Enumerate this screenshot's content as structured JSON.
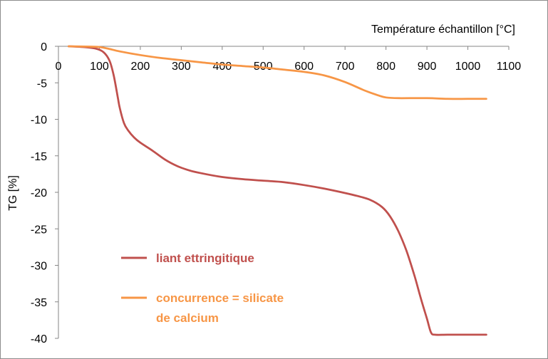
{
  "chart_data": {
    "type": "line",
    "title": "",
    "xlabel": "Température échantillon [°C]",
    "ylabel": "TG [%]",
    "xlim": [
      0,
      1100
    ],
    "ylim": [
      -40,
      0
    ],
    "xticks": [
      0,
      100,
      200,
      300,
      400,
      500,
      600,
      700,
      800,
      900,
      1000,
      1100
    ],
    "yticks": [
      0,
      -5,
      -10,
      -15,
      -20,
      -25,
      -30,
      -35,
      -40
    ],
    "x_axis_position": "top",
    "grid": false,
    "legend_position": "lower-left",
    "series": [
      {
        "name": "liant ettringitique",
        "color": "#c0504d",
        "x": [
          25,
          60,
          90,
          110,
          125,
          135,
          145,
          150,
          160,
          170,
          185,
          200,
          230,
          260,
          290,
          320,
          350,
          400,
          450,
          500,
          550,
          600,
          650,
          700,
          730,
          760,
          790,
          810,
          830,
          850,
          870,
          885,
          900,
          910,
          920,
          950,
          1000,
          1045
        ],
        "y": [
          0,
          -0.1,
          -0.3,
          -0.8,
          -2.0,
          -4.0,
          -7.0,
          -8.5,
          -10.5,
          -11.5,
          -12.5,
          -13.2,
          -14.3,
          -15.5,
          -16.4,
          -17.0,
          -17.4,
          -17.9,
          -18.2,
          -18.4,
          -18.6,
          -19.0,
          -19.5,
          -20.1,
          -20.5,
          -21.0,
          -22.0,
          -23.3,
          -25.3,
          -28.0,
          -31.5,
          -34.5,
          -37.3,
          -39.2,
          -39.5,
          -39.5,
          -39.5,
          -39.5
        ]
      },
      {
        "name": "concurrence = silicate de calcium",
        "color": "#f79646",
        "x": [
          25,
          80,
          100,
          120,
          150,
          200,
          250,
          300,
          350,
          400,
          450,
          500,
          550,
          600,
          650,
          700,
          750,
          780,
          800,
          830,
          900,
          950,
          1000,
          1045
        ],
        "y": [
          0,
          -0.05,
          -0.1,
          -0.3,
          -0.7,
          -1.2,
          -1.6,
          -1.9,
          -2.2,
          -2.5,
          -2.7,
          -2.9,
          -3.2,
          -3.5,
          -4.0,
          -4.9,
          -6.1,
          -6.7,
          -7.0,
          -7.1,
          -7.1,
          -7.2,
          -7.2,
          -7.2
        ]
      }
    ],
    "legend": [
      {
        "lines": [
          "liant ettringitique"
        ],
        "color": "#c0504d"
      },
      {
        "lines": [
          "concurrence = silicate",
          "de calcium"
        ],
        "color": "#f79646"
      }
    ]
  }
}
